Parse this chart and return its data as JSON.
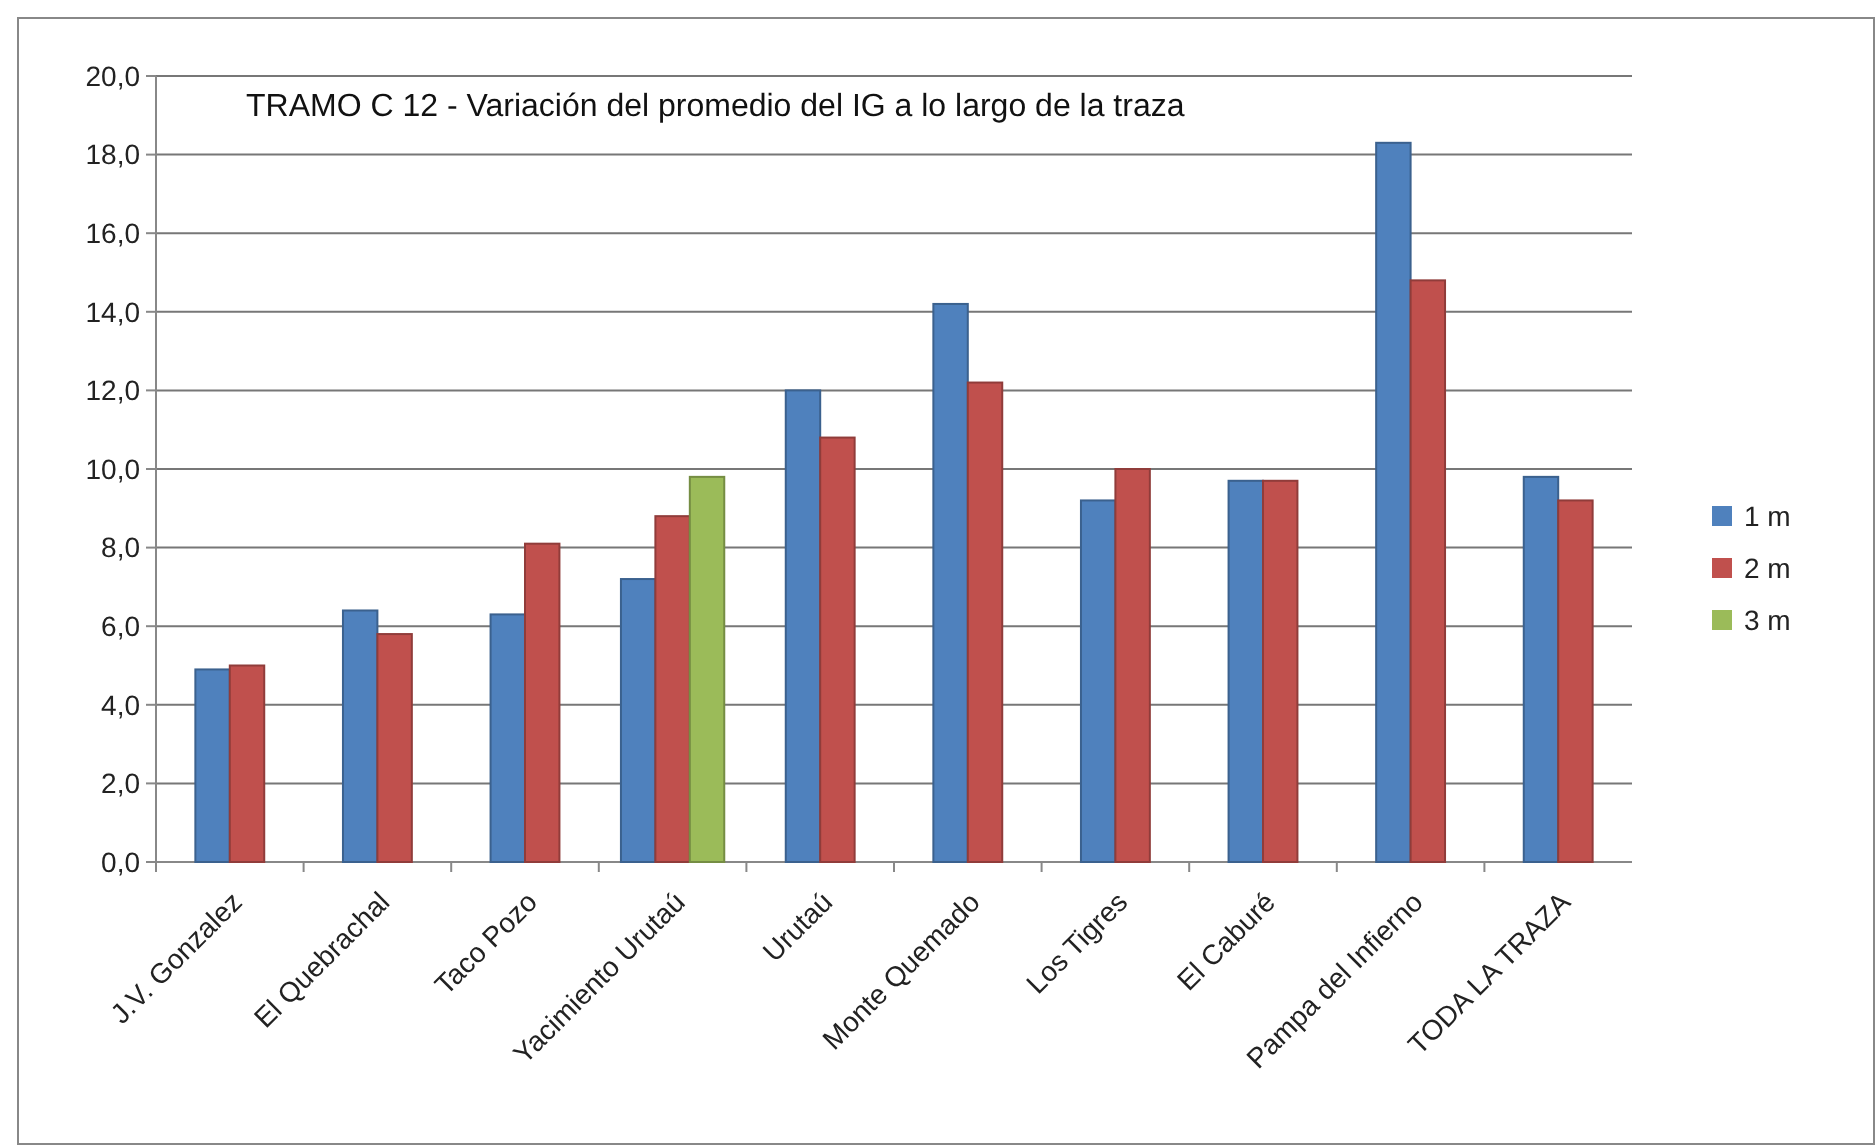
{
  "chart_data": {
    "type": "bar",
    "title": "TRAMO C 12 - Variación del  promedio del IG a lo largo de la traza",
    "categories": [
      "J.V. Gonzalez",
      "El Quebrachal",
      "Taco Pozo",
      "Yacimiento Urutaú",
      "Urutaú",
      "Monte Quemado",
      "Los Tigres",
      "El Caburé",
      "Pampa del Infierno",
      "TODA LA TRAZA"
    ],
    "series": [
      {
        "name": "1 m",
        "color": "#4f81bd",
        "values": [
          4.9,
          6.4,
          6.3,
          7.2,
          12.0,
          14.2,
          9.2,
          9.7,
          18.3,
          9.8
        ]
      },
      {
        "name": "2 m",
        "color": "#c0504d",
        "values": [
          5.0,
          5.8,
          8.1,
          8.8,
          10.8,
          12.2,
          10.0,
          9.7,
          14.8,
          9.2
        ]
      },
      {
        "name": "3 m",
        "color": "#9bbb59",
        "values": [
          null,
          null,
          null,
          9.8,
          null,
          null,
          null,
          null,
          null,
          null
        ]
      }
    ],
    "ylim": [
      0,
      20
    ],
    "yticks": [
      {
        "value": 0,
        "label": "0,0"
      },
      {
        "value": 2,
        "label": "2,0"
      },
      {
        "value": 4,
        "label": "4,0"
      },
      {
        "value": 6,
        "label": "6,0"
      },
      {
        "value": 8,
        "label": "8,0"
      },
      {
        "value": 10,
        "label": "10,0"
      },
      {
        "value": 12,
        "label": "12,0"
      },
      {
        "value": 14,
        "label": "14,0"
      },
      {
        "value": 16,
        "label": "16,0"
      },
      {
        "value": 18,
        "label": "18,0"
      },
      {
        "value": 20,
        "label": "20,0"
      }
    ],
    "grid": "y",
    "legend": "right"
  }
}
